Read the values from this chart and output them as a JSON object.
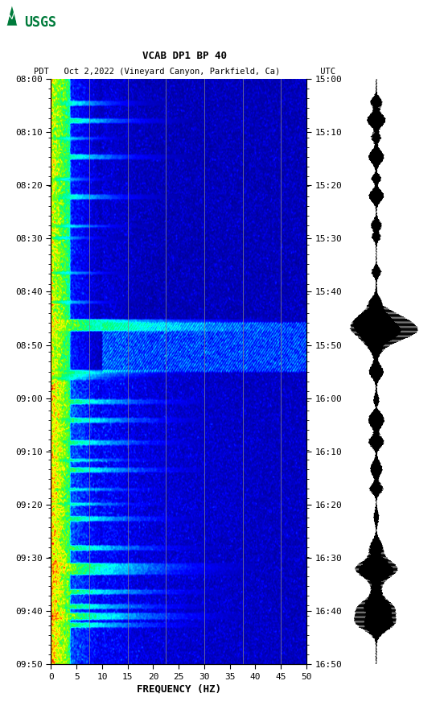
{
  "title_line1": "VCAB DP1 BP 40",
  "title_line2": "PDT   Oct 2,2022 (Vineyard Canyon, Parkfield, Ca)        UTC",
  "xlabel": "FREQUENCY (HZ)",
  "x_ticks": [
    0,
    5,
    10,
    15,
    20,
    25,
    30,
    35,
    40,
    45,
    50
  ],
  "freq_gridlines": [
    7.5,
    15.0,
    22.5,
    30.0,
    37.5,
    45.0
  ],
  "left_time_labels": [
    "08:00",
    "08:10",
    "08:20",
    "08:30",
    "08:40",
    "08:50",
    "09:00",
    "09:10",
    "09:20",
    "09:30",
    "09:40",
    "09:50"
  ],
  "right_time_labels": [
    "15:00",
    "15:10",
    "15:20",
    "15:30",
    "15:40",
    "15:50",
    "16:00",
    "16:10",
    "16:20",
    "16:30",
    "16:40",
    "16:50"
  ],
  "bg_color": "#000080",
  "usgs_green": "#007b3b",
  "waveform_color": "#000000",
  "n_time_rows": 600,
  "n_freq_cols": 400,
  "seed": 7,
  "cmap_colors": [
    [
      0.0,
      "#000090"
    ],
    [
      0.1,
      "#0000ff"
    ],
    [
      0.22,
      "#0080ff"
    ],
    [
      0.35,
      "#00ffff"
    ],
    [
      0.5,
      "#00ff80"
    ],
    [
      0.62,
      "#80ff00"
    ],
    [
      0.72,
      "#ffff00"
    ],
    [
      0.82,
      "#ff8000"
    ],
    [
      0.92,
      "#ff0000"
    ],
    [
      1.0,
      "#800000"
    ]
  ]
}
